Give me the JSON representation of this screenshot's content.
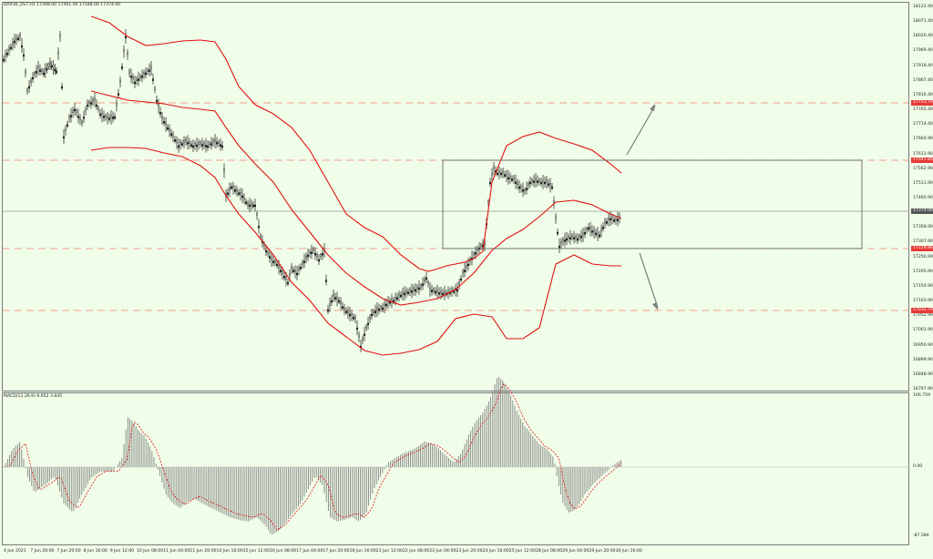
{
  "chart_header": {
    "symbol_info": "DAX30_ZS7.H1  17348.00 17461.00 17348.00 17374.00"
  },
  "macd_header": {
    "label": "MACD(12,26,9) 9.652 3.645"
  },
  "price_axis": {
    "ticks": [
      "18122.40",
      "18071.40",
      "18020.40",
      "17969.40",
      "17918.40",
      "17867.40",
      "17816.40",
      "17765.40",
      "17714.40",
      "17664.90",
      "17613.90",
      "17562.90",
      "17511.90",
      "17460.90",
      "17409.90",
      "17358.90",
      "17307.90",
      "17256.90",
      "17205.90",
      "17154.90",
      "17103.90",
      "17052.90",
      "17001.90",
      "16950.90",
      "16899.90",
      "16848.90",
      "16797.90"
    ]
  },
  "price_levels": [
    {
      "label": "17753.70",
      "color": "#e53935"
    },
    {
      "label": "17541.85",
      "color": "#e53935"
    },
    {
      "label": "17374.00",
      "color": "#555555"
    },
    {
      "label": "17228.86",
      "color": "#e53935"
    },
    {
      "label": "17032.70",
      "color": "#e53935"
    }
  ],
  "macd_axis": {
    "top": "106.759",
    "zero": "0.00",
    "bottom": "-87.584"
  },
  "time_axis": {
    "ticks": [
      "4 Jun 2021",
      "7 Jun 20:00",
      "7 Jun 20:00",
      "8 Jun 16:00",
      "9 Jun 12:00",
      "10 Jun 08:00",
      "11 Jun 04:00",
      "11 Jun 20:00",
      "14 Jun 16:00",
      "15 Jun 12:00",
      "16 Jun 08:00",
      "17 Jun 04:00",
      "17 Jun 20:00",
      "18 Jun 16:00",
      "21 Jun 12:00",
      "22 Jun 08:00",
      "23 Jun 04:00",
      "23 Jun 20:00",
      "24 Jun 16:00",
      "25 Jun 12:00",
      "28 Jun 08:00",
      "29 Jun 04:00",
      "29 Jun 20:00",
      "30 Jun 16:00"
    ]
  },
  "colors": {
    "background": "#f0fde8",
    "band": "#e01010",
    "candle": "#1a1a1a",
    "level_line": "#f08070",
    "histogram": "#808080",
    "signal": "#e01010",
    "arrow": "#808080"
  }
}
